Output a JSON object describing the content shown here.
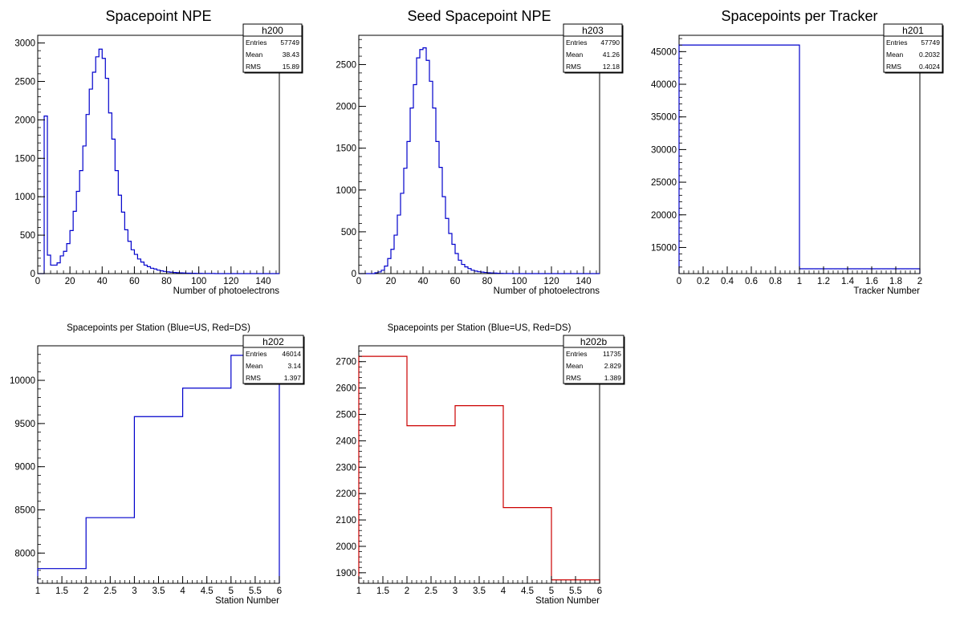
{
  "chart_data": [
    {
      "id": "h200",
      "type": "histogram",
      "title": "Spacepoint NPE",
      "xlabel": "Number of photoelectrons",
      "ylabel": "",
      "xlim": [
        0,
        150
      ],
      "ylim": [
        0,
        3100
      ],
      "xticks": [
        0,
        20,
        40,
        60,
        80,
        100,
        120,
        140
      ],
      "yticks": [
        0,
        500,
        1000,
        1500,
        2000,
        2500,
        3000
      ],
      "color": "#0000cc",
      "stats": {
        "name": "h200",
        "rows": [
          [
            "Entries",
            "57749"
          ],
          [
            "Mean",
            "38.43"
          ],
          [
            "RMS",
            "15.89"
          ]
        ]
      },
      "bin_width": 2,
      "x_start": 0,
      "values": [
        0,
        0,
        2050,
        240,
        110,
        110,
        140,
        230,
        290,
        390,
        560,
        810,
        1070,
        1340,
        1660,
        2070,
        2400,
        2620,
        2820,
        2920,
        2800,
        2540,
        2090,
        1750,
        1340,
        1020,
        800,
        570,
        420,
        310,
        250,
        190,
        150,
        110,
        90,
        70,
        60,
        45,
        35,
        28,
        22,
        18,
        14,
        12,
        10,
        8,
        6,
        5,
        4,
        3,
        3,
        2,
        2,
        1,
        1,
        0,
        0,
        0,
        0,
        0,
        0,
        0,
        0,
        0,
        0,
        0,
        0,
        0,
        0,
        0,
        0,
        0,
        0,
        0,
        0
      ]
    },
    {
      "id": "h203",
      "type": "histogram",
      "title": "Seed Spacepoint NPE",
      "xlabel": "Number of photoelectrons",
      "ylabel": "",
      "xlim": [
        0,
        150
      ],
      "ylim": [
        0,
        2850
      ],
      "xticks": [
        0,
        20,
        40,
        60,
        80,
        100,
        120,
        140
      ],
      "yticks": [
        0,
        500,
        1000,
        1500,
        2000,
        2500
      ],
      "color": "#0000cc",
      "stats": {
        "name": "h203",
        "rows": [
          [
            "Entries",
            "47790"
          ],
          [
            "Mean",
            "41.26"
          ],
          [
            "RMS",
            "12.18"
          ]
        ]
      },
      "bin_width": 2,
      "x_start": 0,
      "values": [
        0,
        0,
        0,
        0,
        0,
        10,
        20,
        40,
        90,
        180,
        290,
        460,
        700,
        960,
        1260,
        1580,
        1980,
        2260,
        2580,
        2680,
        2700,
        2550,
        2300,
        1980,
        1580,
        1270,
        920,
        660,
        480,
        350,
        240,
        160,
        110,
        80,
        60,
        40,
        30,
        22,
        18,
        14,
        10,
        8,
        6,
        4,
        3,
        2,
        1,
        1,
        0,
        0,
        0,
        0,
        0,
        0,
        0,
        0,
        0,
        0,
        0,
        0,
        0,
        0,
        0,
        0,
        0,
        0,
        0,
        0,
        0,
        0,
        0,
        0,
        0,
        0,
        0
      ]
    },
    {
      "id": "h201",
      "type": "histogram",
      "title": "Spacepoints per Tracker",
      "xlabel": "Tracker Number",
      "ylabel": "",
      "xlim": [
        0,
        2
      ],
      "ylim": [
        11000,
        47500
      ],
      "xticks": [
        "0",
        "0.2",
        "0.4",
        "0.6",
        "0.8",
        "1",
        "1.2",
        "1.4",
        "1.6",
        "1.8",
        "2"
      ],
      "yticks": [
        15000,
        20000,
        25000,
        30000,
        35000,
        40000,
        45000
      ],
      "color": "#0000cc",
      "stats": {
        "name": "h201",
        "rows": [
          [
            "Entries",
            "57749"
          ],
          [
            "Mean",
            "0.2032"
          ],
          [
            "RMS",
            "0.4024"
          ]
        ]
      },
      "edges": [
        0,
        1,
        2
      ],
      "values": [
        46014,
        11735
      ]
    },
    {
      "id": "h202",
      "type": "histogram",
      "title": "Spacepoints per Station (Blue=US, Red=DS)",
      "xlabel": "Station Number",
      "ylabel": "",
      "xlim": [
        1,
        6
      ],
      "ylim": [
        7650,
        10400
      ],
      "xticks": [
        "1",
        "1.5",
        "2",
        "2.5",
        "3",
        "3.5",
        "4",
        "4.5",
        "5",
        "5.5",
        "6"
      ],
      "yticks": [
        8000,
        8500,
        9000,
        9500,
        10000
      ],
      "color": "#0000cc",
      "stats": {
        "name": "h202",
        "rows": [
          [
            "Entries",
            "46014"
          ],
          [
            "Mean",
            "3.14"
          ],
          [
            "RMS",
            "1.397"
          ]
        ]
      },
      "edges": [
        1,
        2,
        3,
        4,
        5,
        6
      ],
      "values": [
        7820,
        8410,
        9580,
        9910,
        10290
      ]
    },
    {
      "id": "h202b",
      "type": "histogram",
      "title": "Spacepoints per Station (Blue=US, Red=DS)",
      "xlabel": "Station Number",
      "ylabel": "",
      "xlim": [
        1,
        6
      ],
      "ylim": [
        1860,
        2760
      ],
      "xticks": [
        "1",
        "1.5",
        "2",
        "2.5",
        "3",
        "3.5",
        "4",
        "4.5",
        "5",
        "5.5",
        "6"
      ],
      "yticks": [
        1900,
        2000,
        2100,
        2200,
        2300,
        2400,
        2500,
        2600,
        2700
      ],
      "color": "#cc0000",
      "stats": {
        "name": "h202b",
        "rows": [
          [
            "Entries",
            "11735"
          ],
          [
            "Mean",
            "2.829"
          ],
          [
            "RMS",
            "1.389"
          ]
        ]
      },
      "edges": [
        1,
        2,
        3,
        4,
        5,
        6
      ],
      "values": [
        2720,
        2457,
        2533,
        2147,
        1873
      ]
    }
  ]
}
